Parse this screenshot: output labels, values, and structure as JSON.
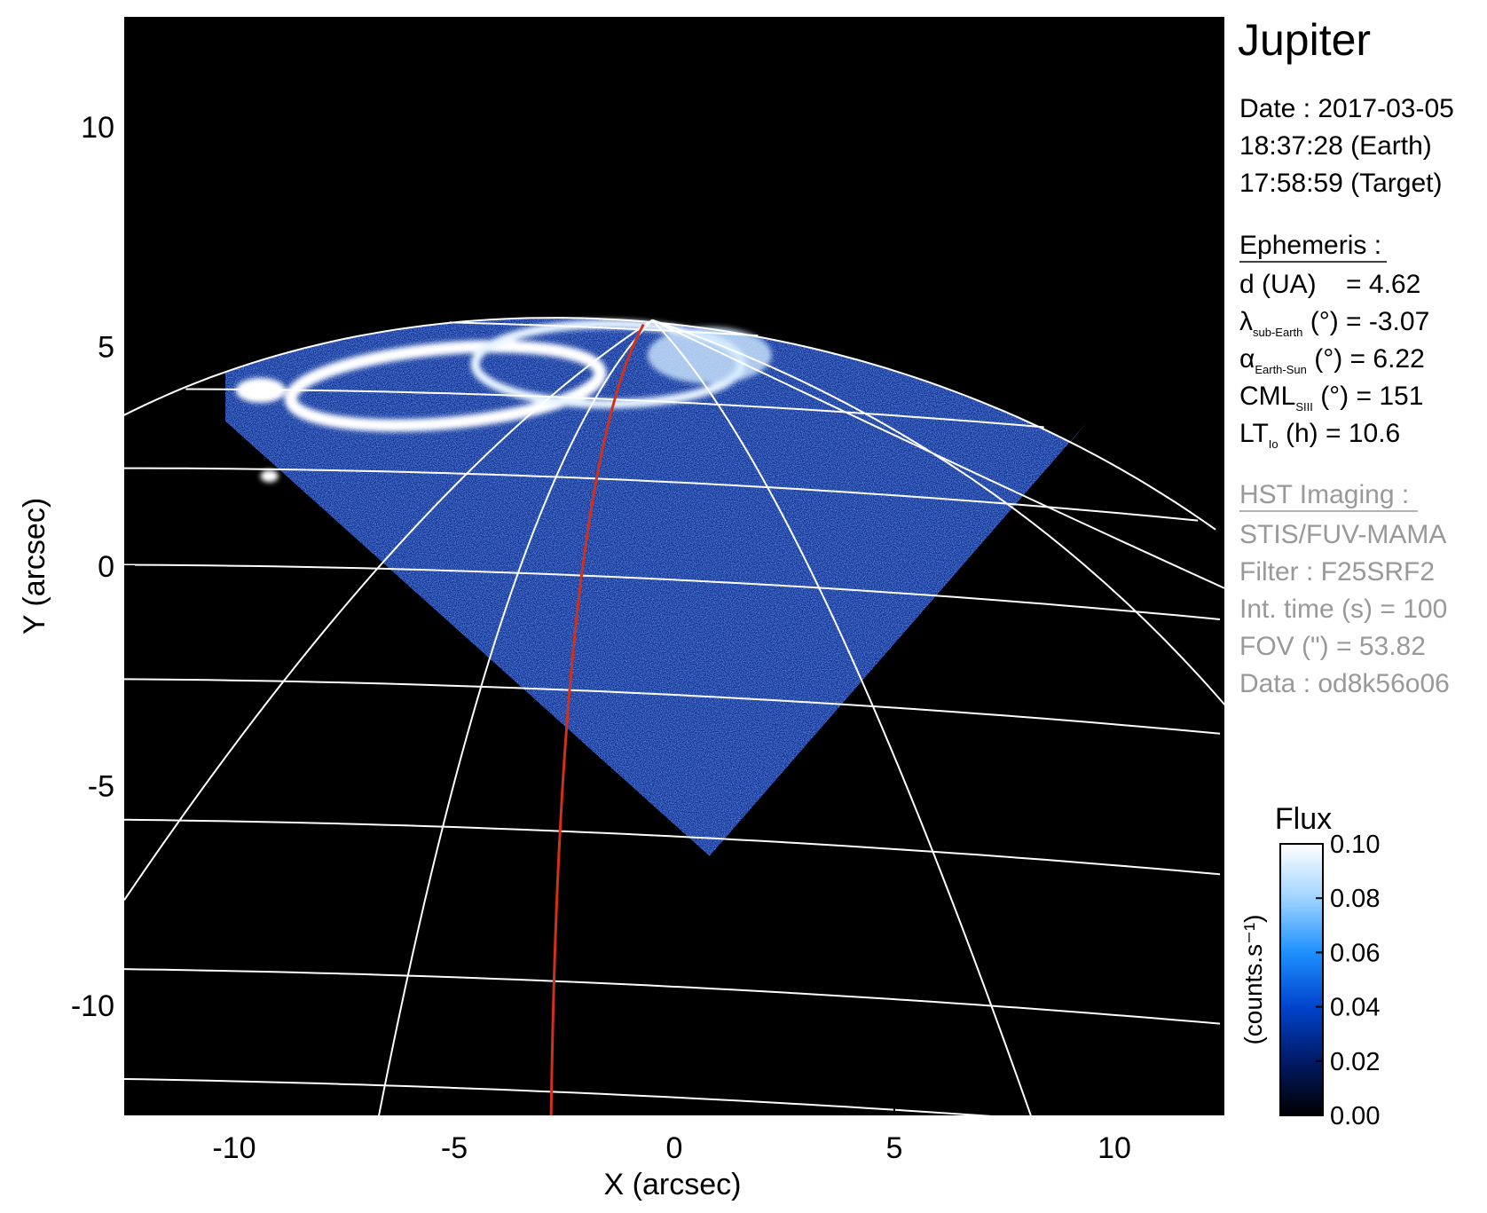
{
  "chart_data": {
    "type": "image",
    "xlabel": "X (arcsec)",
    "ylabel": "Y (arcsec)",
    "xlim": [
      -12.5,
      12.5
    ],
    "ylim": [
      -12.5,
      12.5
    ],
    "xticks": [
      -10,
      -5,
      0,
      5,
      10
    ],
    "yticks": [
      -10,
      -5,
      0,
      5,
      10
    ],
    "colorbar": {
      "label": "Flux",
      "units": "(counts.s⁻¹)",
      "lim": [
        0,
        0.1
      ],
      "ticks": [
        {
          "value": 0,
          "label": "0.00"
        },
        {
          "value": 0.02,
          "label": "0.02"
        },
        {
          "value": 0.04,
          "label": "0.04"
        },
        {
          "value": 0.06,
          "label": "0.06"
        },
        {
          "value": 0.08,
          "label": "0.08"
        },
        {
          "value": 0.1,
          "label": "0.10"
        }
      ],
      "colors": [
        "#000000",
        "#001a66",
        "#0044cc",
        "#1e90ff",
        "#9fd4ff",
        "#ffffff"
      ]
    }
  },
  "info": {
    "target": "Jupiter",
    "date": [
      "Date : 2017-03-05",
      "18:37:28 (Earth)",
      "17:58:59 (Target)"
    ],
    "ephemeris_title": "Ephemeris :",
    "ephemeris": [
      {
        "main": "d (UA)",
        "sub": "",
        "rest": "    = 4.62"
      },
      {
        "main": "λ",
        "sub": "sub-Earth",
        "rest": " (°) = -3.07"
      },
      {
        "main": "α",
        "sub": "Earth-Sun",
        "rest": " (°) = 6.22"
      },
      {
        "main": "CML",
        "sub": "SIII",
        "rest": " (°) = 151"
      },
      {
        "main": "LT",
        "sub": "Io",
        "rest": " (h) = 10.6"
      }
    ],
    "hst_title": "HST Imaging :",
    "hst": [
      "STIS/FUV-MAMA",
      "Filter : F25SRF2",
      "Int. time (s) = 100",
      "FOV (\") = 53.82",
      "Data : od8k56o06"
    ]
  }
}
